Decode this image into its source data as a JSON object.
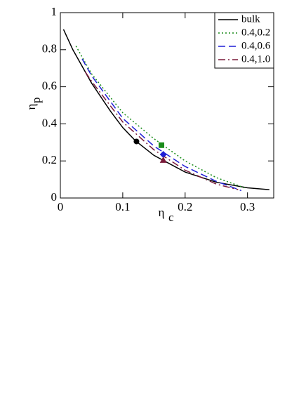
{
  "chart_data": {
    "type": "line",
    "xlabel": {
      "symbol": "η",
      "subscript": "c"
    },
    "ylabel": {
      "symbol": "η",
      "subscript": "p"
    },
    "xlim": [
      0,
      0.342
    ],
    "ylim": [
      0,
      1
    ],
    "xticks": [
      0,
      0.1,
      0.2,
      0.3
    ],
    "yticks": [
      0,
      0.2,
      0.4,
      0.6,
      0.8,
      1
    ],
    "legend": "upper right",
    "series": [
      {
        "name": "bulk",
        "color": "#000000",
        "style": "solid",
        "x": [
          0.005,
          0.02,
          0.05,
          0.08,
          0.1,
          0.12,
          0.15,
          0.2,
          0.25,
          0.3,
          0.335
        ],
        "values": [
          0.91,
          0.8,
          0.62,
          0.47,
          0.38,
          0.31,
          0.23,
          0.14,
          0.085,
          0.055,
          0.045
        ]
      },
      {
        "name": "0.4,0.2",
        "color": "#1a8c1a",
        "style": "dotted",
        "x": [
          0.025,
          0.05,
          0.1,
          0.15,
          0.2,
          0.25,
          0.295
        ],
        "values": [
          0.82,
          0.67,
          0.46,
          0.32,
          0.2,
          0.11,
          0.055
        ]
      },
      {
        "name": "0.4,0.6",
        "color": "#1f1fd6",
        "style": "dashed",
        "x": [
          0.035,
          0.05,
          0.1,
          0.15,
          0.2,
          0.25,
          0.29
        ],
        "values": [
          0.75,
          0.66,
          0.43,
          0.28,
          0.17,
          0.09,
          0.04
        ]
      },
      {
        "name": "0.4,1.0",
        "color": "#7a1a3a",
        "style": "dashdot",
        "x": [
          0.04,
          0.05,
          0.1,
          0.15,
          0.2,
          0.25,
          0.285
        ],
        "values": [
          0.68,
          0.63,
          0.41,
          0.26,
          0.15,
          0.075,
          0.045
        ]
      }
    ],
    "markers": [
      {
        "x": 0.122,
        "y": 0.305,
        "color": "#000000",
        "shape": "circle"
      },
      {
        "x": 0.162,
        "y": 0.285,
        "color": "#1a8c1a",
        "shape": "square"
      },
      {
        "x": 0.165,
        "y": 0.235,
        "color": "#1f1fd6",
        "shape": "diamond"
      },
      {
        "x": 0.165,
        "y": 0.205,
        "color": "#7a1a3a",
        "shape": "triangle"
      }
    ]
  }
}
